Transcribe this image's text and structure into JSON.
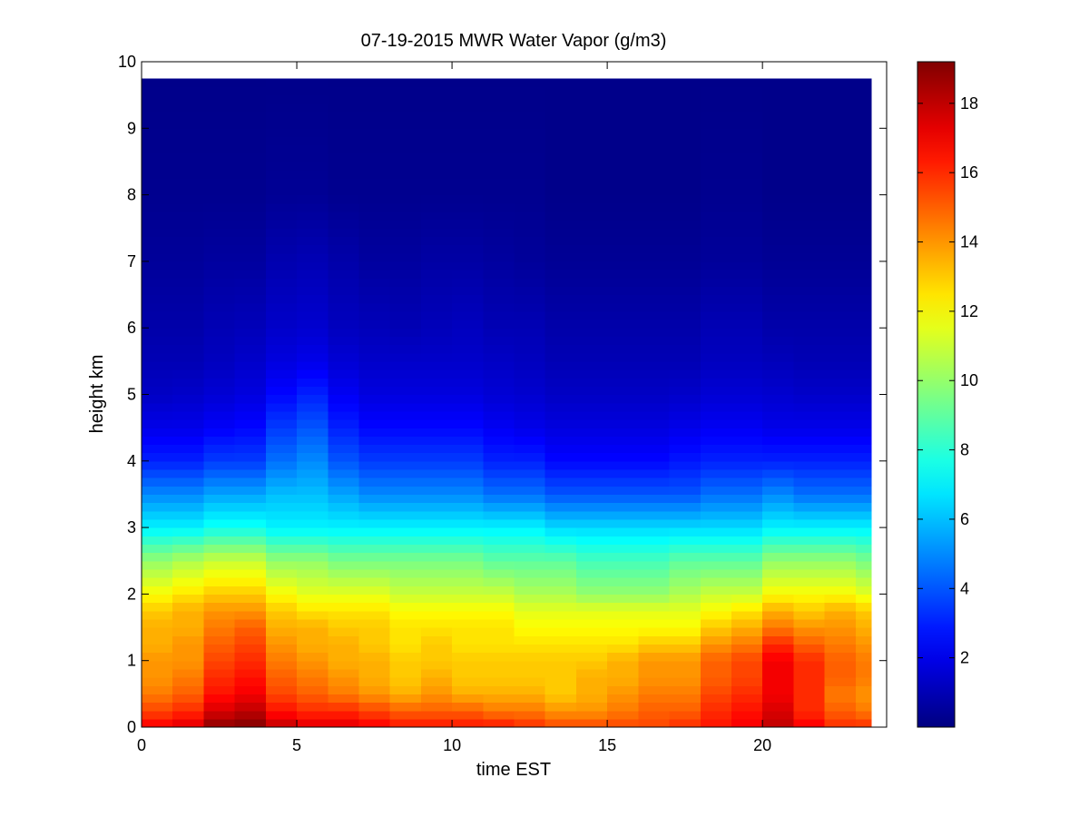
{
  "chart_data": {
    "type": "heatmap",
    "title": "07-19-2015 MWR Water Vapor (g/m3)",
    "xlabel": "time EST",
    "ylabel": "height km",
    "xlim": [
      0,
      24
    ],
    "ylim": [
      0,
      10
    ],
    "x_ticks": [
      "0",
      "5",
      "10",
      "15",
      "20"
    ],
    "y_ticks": [
      "0",
      "1",
      "2",
      "3",
      "4",
      "5",
      "6",
      "7",
      "8",
      "9",
      "10"
    ],
    "colormap": "jet",
    "colorbar": {
      "range": [
        0,
        19.2
      ],
      "ticks": [
        "2",
        "4",
        "6",
        "8",
        "10",
        "12",
        "14",
        "16",
        "18"
      ]
    },
    "x_edges": [
      0,
      1,
      2,
      3,
      4,
      5,
      6,
      7,
      8,
      9,
      10,
      11,
      12,
      13,
      14,
      15,
      16,
      17,
      18,
      19,
      20,
      21,
      22,
      23,
      23.5
    ],
    "y_top": 9.75,
    "profiles": {
      "heights": [
        0,
        0.25,
        0.5,
        0.75,
        1.0,
        1.25,
        1.5,
        1.75,
        2.0,
        2.5,
        3.0,
        3.5,
        4.0,
        4.5,
        5.0,
        5.5,
        6.0,
        7.0,
        8.0,
        9.75
      ],
      "values": [
        [
          17.0,
          15.5,
          14.5,
          14.0,
          14.0,
          13.5,
          13.5,
          13.0,
          12.0,
          10.0,
          7.0,
          5.0,
          3.0,
          2.0,
          1.3,
          1.0,
          0.8,
          0.5,
          0.3,
          0.2
        ],
        [
          17.5,
          16.0,
          15.0,
          14.5,
          14.0,
          14.0,
          13.5,
          13.5,
          12.5,
          10.5,
          7.0,
          5.0,
          3.0,
          2.0,
          1.4,
          1.0,
          0.8,
          0.5,
          0.3,
          0.2
        ],
        [
          19.0,
          17.5,
          16.5,
          16.0,
          15.5,
          15.0,
          14.5,
          14.0,
          13.0,
          11.0,
          7.5,
          5.5,
          3.5,
          2.3,
          1.6,
          1.2,
          1.0,
          0.6,
          0.3,
          0.2
        ],
        [
          19.2,
          18.0,
          17.0,
          16.5,
          16.0,
          15.5,
          15.0,
          14.0,
          13.0,
          11.0,
          7.5,
          5.5,
          3.5,
          2.5,
          1.8,
          1.4,
          1.1,
          0.6,
          0.3,
          0.2
        ],
        [
          18.0,
          16.5,
          15.5,
          15.0,
          14.5,
          14.0,
          13.5,
          13.0,
          12.0,
          10.0,
          7.0,
          6.0,
          4.5,
          3.5,
          2.5,
          1.8,
          1.4,
          0.9,
          0.4,
          0.2
        ],
        [
          17.5,
          16.0,
          15.0,
          14.5,
          14.0,
          13.5,
          13.5,
          12.5,
          11.5,
          10.0,
          7.0,
          6.0,
          5.0,
          4.0,
          3.0,
          2.0,
          1.5,
          1.0,
          0.4,
          0.2
        ],
        [
          17.5,
          16.0,
          14.5,
          14.0,
          13.5,
          13.5,
          13.0,
          12.5,
          11.5,
          9.5,
          7.0,
          5.5,
          4.0,
          3.0,
          2.2,
          1.6,
          1.2,
          0.8,
          0.3,
          0.2
        ],
        [
          17.0,
          15.5,
          14.0,
          13.5,
          13.5,
          13.0,
          13.0,
          12.5,
          11.5,
          9.5,
          7.0,
          5.0,
          3.5,
          2.5,
          1.8,
          1.4,
          1.1,
          0.6,
          0.3,
          0.2
        ],
        [
          16.5,
          15.0,
          13.5,
          13.0,
          13.0,
          12.5,
          12.5,
          12.0,
          11.0,
          9.5,
          7.0,
          5.0,
          3.5,
          2.5,
          1.8,
          1.4,
          1.0,
          0.6,
          0.3,
          0.2
        ],
        [
          16.5,
          15.0,
          14.0,
          13.5,
          13.0,
          13.0,
          12.5,
          12.0,
          11.0,
          9.5,
          7.0,
          5.0,
          3.5,
          2.5,
          1.8,
          1.4,
          1.1,
          0.7,
          0.3,
          0.2
        ],
        [
          16.5,
          15.0,
          13.5,
          13.0,
          13.0,
          12.5,
          12.5,
          12.0,
          11.0,
          9.5,
          7.0,
          5.0,
          3.5,
          2.5,
          1.8,
          1.4,
          1.2,
          0.7,
          0.3,
          0.2
        ],
        [
          16.5,
          14.5,
          13.5,
          13.0,
          13.0,
          12.5,
          12.5,
          12.0,
          11.0,
          9.0,
          7.0,
          4.5,
          3.0,
          2.2,
          1.6,
          1.3,
          1.0,
          0.6,
          0.3,
          0.2
        ],
        [
          16.0,
          14.5,
          13.5,
          13.0,
          13.0,
          12.5,
          12.0,
          11.5,
          10.5,
          9.0,
          7.0,
          4.5,
          3.0,
          2.0,
          1.5,
          1.2,
          1.0,
          0.5,
          0.3,
          0.2
        ],
        [
          15.5,
          14.0,
          13.0,
          13.0,
          13.0,
          12.5,
          12.0,
          11.5,
          10.5,
          9.0,
          6.5,
          4.0,
          2.5,
          1.8,
          1.3,
          1.0,
          0.8,
          0.4,
          0.2,
          0.2
        ],
        [
          15.5,
          14.0,
          13.5,
          13.5,
          13.0,
          12.5,
          12.0,
          11.5,
          10.0,
          8.5,
          6.5,
          4.0,
          2.5,
          1.8,
          1.3,
          1.0,
          0.8,
          0.4,
          0.2,
          0.2
        ],
        [
          15.5,
          14.5,
          14.0,
          13.5,
          13.5,
          12.5,
          12.0,
          11.5,
          10.0,
          8.5,
          6.5,
          4.0,
          2.5,
          1.8,
          1.3,
          1.0,
          0.8,
          0.4,
          0.2,
          0.2
        ],
        [
          15.5,
          15.0,
          14.5,
          14.0,
          14.0,
          13.0,
          12.0,
          11.5,
          10.0,
          8.5,
          6.5,
          4.0,
          2.5,
          1.8,
          1.3,
          1.0,
          0.8,
          0.4,
          0.2,
          0.2
        ],
        [
          16.0,
          15.0,
          14.5,
          14.0,
          14.0,
          13.0,
          12.0,
          11.5,
          10.5,
          9.0,
          6.5,
          4.0,
          2.8,
          2.0,
          1.4,
          1.0,
          0.8,
          0.4,
          0.2,
          0.2
        ],
        [
          16.5,
          16.0,
          15.5,
          15.0,
          15.0,
          14.0,
          13.0,
          12.0,
          11.0,
          9.0,
          6.5,
          4.5,
          3.0,
          2.2,
          1.6,
          1.2,
          1.0,
          0.5,
          0.3,
          0.2
        ],
        [
          17.0,
          16.5,
          16.0,
          15.5,
          15.5,
          14.5,
          13.5,
          12.5,
          11.0,
          9.0,
          6.5,
          4.5,
          3.0,
          2.2,
          1.6,
          1.2,
          1.0,
          0.5,
          0.3,
          0.2
        ],
        [
          18.0,
          17.5,
          17.0,
          17.0,
          17.0,
          16.0,
          14.5,
          13.5,
          12.0,
          10.0,
          7.0,
          5.0,
          3.0,
          2.0,
          1.5,
          1.1,
          0.8,
          0.4,
          0.2,
          0.2
        ],
        [
          17.0,
          16.0,
          16.0,
          16.0,
          16.0,
          15.0,
          14.0,
          13.0,
          12.0,
          10.0,
          7.0,
          4.5,
          3.0,
          2.0,
          1.4,
          1.0,
          0.8,
          0.4,
          0.2,
          0.2
        ],
        [
          16.0,
          15.0,
          14.5,
          15.0,
          15.0,
          14.5,
          14.0,
          13.5,
          12.0,
          10.0,
          7.0,
          4.5,
          3.0,
          2.0,
          1.4,
          1.0,
          0.8,
          0.4,
          0.2,
          0.2
        ],
        [
          16.0,
          14.5,
          14.0,
          14.5,
          14.5,
          14.0,
          13.5,
          13.0,
          11.5,
          9.5,
          7.0,
          4.5,
          3.0,
          2.0,
          1.4,
          1.0,
          0.8,
          0.4,
          0.2,
          0.2
        ]
      ]
    }
  }
}
